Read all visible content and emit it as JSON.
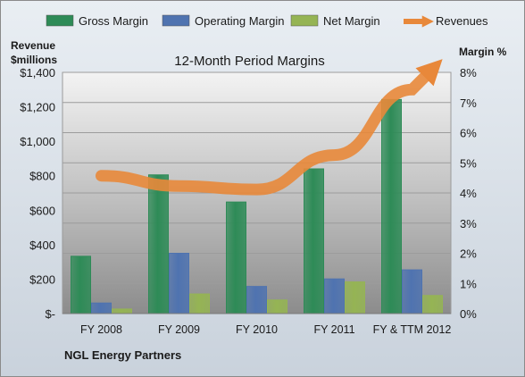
{
  "chart_data": {
    "type": "bar",
    "title": "12-Month Period Margins",
    "company": "NGL Energy Partners",
    "left_axis_title": [
      "Revenue",
      "$millions"
    ],
    "right_axis_title": "Margin %",
    "categories": [
      "FY 2008",
      "FY 2009",
      "FY 2010",
      "FY 2011",
      "FY & TTM 2012"
    ],
    "left_ticks": [
      "$-",
      "$200",
      "$400",
      "$600",
      "$800",
      "$1,000",
      "$1,200",
      "$1,400"
    ],
    "right_ticks": [
      "0%",
      "1%",
      "2%",
      "3%",
      "4%",
      "5%",
      "6%",
      "7%",
      "8%"
    ],
    "ylim_left": [
      0,
      1400
    ],
    "ylim_right": [
      0,
      8
    ],
    "series": [
      {
        "name": "Gross Margin",
        "axis": "right",
        "color": "#2e8b57",
        "values": [
          1.9,
          4.6,
          3.7,
          4.8,
          7.1
        ]
      },
      {
        "name": "Operating Margin",
        "axis": "right",
        "color": "#4f73b0",
        "values": [
          0.35,
          2.0,
          0.9,
          1.15,
          1.45
        ]
      },
      {
        "name": "Net Margin",
        "axis": "right",
        "color": "#95b454",
        "values": [
          0.15,
          0.65,
          0.45,
          1.05,
          0.6
        ]
      }
    ],
    "revenue_trend": {
      "name": "Revenues",
      "color": "#e8883a",
      "values": [
        800,
        740,
        720,
        920,
        1300
      ]
    },
    "legend_position": "top",
    "grid": true
  }
}
